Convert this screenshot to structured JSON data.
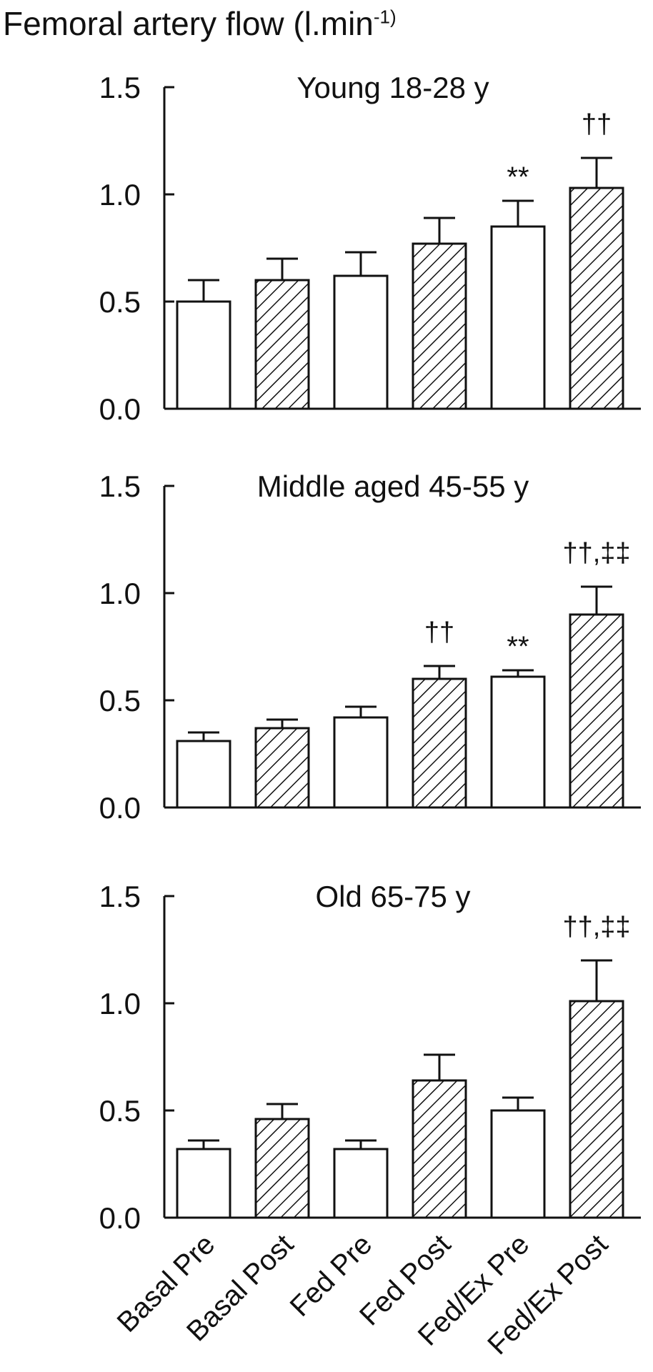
{
  "figure": {
    "ylabel_main": "Femoral artery flow (l.min",
    "ylabel_sup": "-1)"
  },
  "chart_data": [
    {
      "type": "bar",
      "title": "Young 18-28 y",
      "categories": [
        "Basal Pre",
        "Basal Post",
        "Fed Pre",
        "Fed Post",
        "Fed/Ex Pre",
        "Fed/Ex Post"
      ],
      "values": [
        0.5,
        0.6,
        0.62,
        0.77,
        0.85,
        1.03
      ],
      "errors": [
        0.1,
        0.1,
        0.11,
        0.12,
        0.12,
        0.14
      ],
      "annotations": [
        "",
        "",
        "",
        "",
        "**",
        "††"
      ],
      "hatched": [
        false,
        true,
        false,
        true,
        false,
        true
      ],
      "ylim": [
        0,
        1.5
      ],
      "yticks": [
        "0.0",
        "0.5",
        "1.0",
        "1.5"
      ]
    },
    {
      "type": "bar",
      "title": "Middle aged 45-55 y",
      "categories": [
        "Basal Pre",
        "Basal Post",
        "Fed Pre",
        "Fed Post",
        "Fed/Ex Pre",
        "Fed/Ex Post"
      ],
      "values": [
        0.31,
        0.37,
        0.42,
        0.6,
        0.61,
        0.9
      ],
      "errors": [
        0.04,
        0.04,
        0.05,
        0.06,
        0.03,
        0.13
      ],
      "annotations": [
        "",
        "",
        "",
        "††",
        "**",
        "††,‡‡"
      ],
      "hatched": [
        false,
        true,
        false,
        true,
        false,
        true
      ],
      "ylim": [
        0,
        1.5
      ],
      "yticks": [
        "0.0",
        "0.5",
        "1.0",
        "1.5"
      ]
    },
    {
      "type": "bar",
      "title": "Old 65-75 y",
      "categories": [
        "Basal Pre",
        "Basal Post",
        "Fed Pre",
        "Fed Post",
        "Fed/Ex Pre",
        "Fed/Ex Post"
      ],
      "values": [
        0.32,
        0.46,
        0.32,
        0.64,
        0.5,
        1.01
      ],
      "errors": [
        0.04,
        0.07,
        0.04,
        0.12,
        0.06,
        0.19
      ],
      "annotations": [
        "",
        "",
        "",
        "",
        "",
        "††,‡‡"
      ],
      "hatched": [
        false,
        true,
        false,
        true,
        false,
        true
      ],
      "ylim": [
        0,
        1.5
      ],
      "yticks": [
        "0.0",
        "0.5",
        "1.0",
        "1.5"
      ]
    }
  ]
}
